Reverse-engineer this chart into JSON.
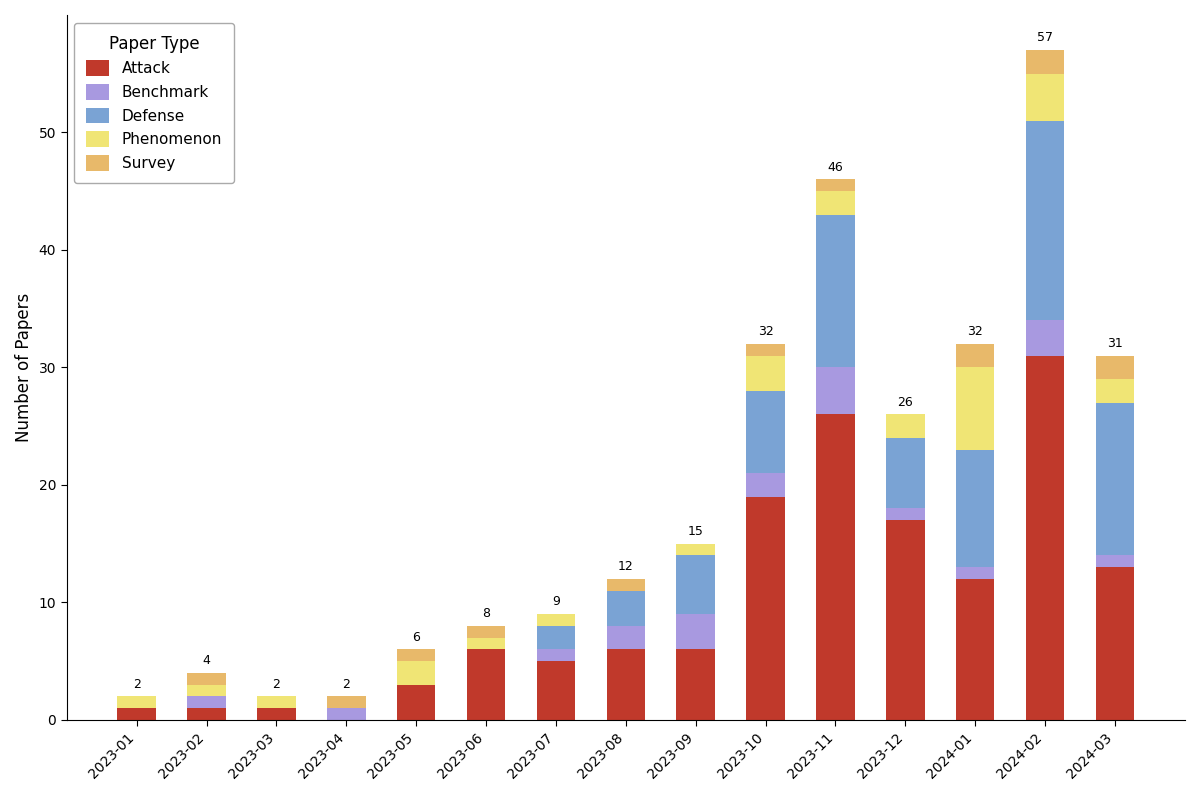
{
  "months": [
    "2023-01",
    "2023-02",
    "2023-03",
    "2023-04",
    "2023-05",
    "2023-06",
    "2023-07",
    "2023-08",
    "2023-09",
    "2023-10",
    "2023-11",
    "2023-12",
    "2024-01",
    "2024-02",
    "2024-03"
  ],
  "totals": [
    2,
    4,
    2,
    2,
    6,
    8,
    9,
    12,
    15,
    32,
    46,
    26,
    32,
    57,
    31
  ],
  "attack": [
    1,
    1,
    1,
    0,
    3,
    6,
    5,
    6,
    6,
    19,
    26,
    17,
    12,
    31,
    13
  ],
  "benchmark": [
    0,
    1,
    0,
    1,
    0,
    0,
    1,
    2,
    3,
    2,
    4,
    1,
    1,
    3,
    1
  ],
  "defense": [
    0,
    0,
    0,
    0,
    0,
    0,
    2,
    3,
    5,
    7,
    13,
    6,
    10,
    17,
    13
  ],
  "phenomenon": [
    1,
    1,
    1,
    0,
    2,
    1,
    1,
    0,
    1,
    3,
    2,
    2,
    7,
    4,
    2
  ],
  "survey": [
    0,
    1,
    0,
    1,
    1,
    1,
    0,
    1,
    0,
    1,
    1,
    0,
    2,
    2,
    2
  ],
  "colors": {
    "Attack": "#c0392b",
    "Benchmark": "#a899e0",
    "Defense": "#7aa3d4",
    "Phenomenon": "#f0e575",
    "Survey": "#e8b96a"
  },
  "ylabel": "Number of Papers",
  "legend_title": "Paper Type",
  "ylim": [
    0,
    60
  ],
  "yticks": [
    0,
    10,
    20,
    30,
    40,
    50
  ],
  "figsize": [
    12.0,
    7.96
  ],
  "dpi": 100,
  "bar_width": 0.55,
  "label_fontsize": 9,
  "axis_fontsize": 12,
  "tick_fontsize": 10,
  "legend_fontsize": 11,
  "legend_title_fontsize": 12
}
